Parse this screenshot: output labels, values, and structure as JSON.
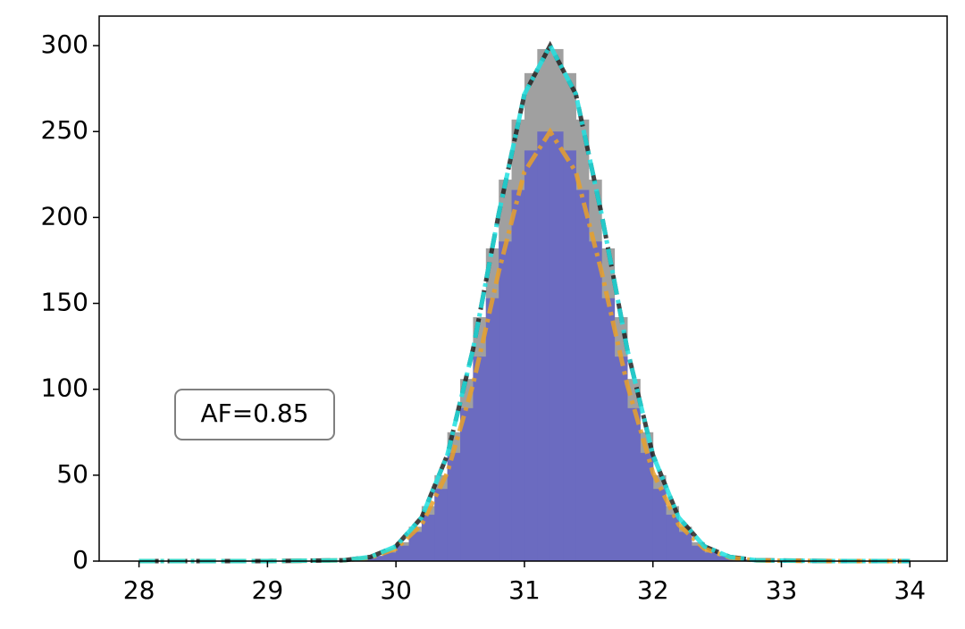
{
  "chart_data": {
    "type": "histogram",
    "annotation": "AF=0.85",
    "bins": [
      29.6,
      29.7,
      29.8,
      29.9,
      30.0,
      30.1,
      30.2,
      30.3,
      30.4,
      30.5,
      30.6,
      30.7,
      30.8,
      30.9,
      31.0,
      31.1,
      31.2,
      31.3,
      31.4,
      31.5,
      31.6,
      31.7,
      31.8,
      31.9,
      32.0,
      32.1,
      32.2,
      32.3,
      32.4,
      32.5,
      32.6,
      32.7,
      32.8
    ],
    "series": [
      {
        "color": "#a0a0a0",
        "values": [
          1,
          2,
          3,
          6,
          11,
          20,
          32,
          50,
          75,
          106,
          142,
          182,
          222,
          257,
          284,
          298,
          298,
          284,
          257,
          222,
          182,
          142,
          106,
          75,
          50,
          32,
          20,
          11,
          6,
          3,
          2,
          1
        ]
      },
      {
        "color": "#6b6bc0",
        "values": [
          1,
          1,
          3,
          5,
          9,
          17,
          27,
          42,
          63,
          89,
          119,
          153,
          186,
          216,
          239,
          250,
          250,
          239,
          216,
          186,
          153,
          119,
          89,
          63,
          42,
          27,
          17,
          9,
          5,
          3,
          2,
          1
        ]
      }
    ],
    "curves": {
      "x": [
        28,
        29,
        29.6,
        29.8,
        30.0,
        30.2,
        30.4,
        30.6,
        30.8,
        31.0,
        31.2,
        31.4,
        31.6,
        31.8,
        32.0,
        32.2,
        32.4,
        32.6,
        32.8,
        33.4,
        34
      ],
      "series": [
        {
          "color": "#222222",
          "dash": "22,10",
          "values": [
            0,
            0,
            0.5,
            2.4,
            8.6,
            25.4,
            61.8,
            123.3,
            202.1,
            271.8,
            300,
            271.8,
            202.1,
            123.3,
            61.8,
            25.4,
            8.6,
            2.4,
            0.5,
            0,
            0
          ]
        },
        {
          "color": "#e8a02a",
          "dash": "18,6,4,6",
          "values": [
            0,
            0,
            0.4,
            2,
            7.2,
            21.2,
            51.5,
            102.7,
            168.4,
            226.5,
            250,
            226.5,
            168.4,
            102.7,
            51.5,
            21.2,
            7.2,
            2,
            0.4,
            0,
            0
          ]
        },
        {
          "color": "#20e0e0",
          "dash": "18,6,4,6",
          "values": [
            0,
            0,
            0.5,
            2.4,
            8.6,
            25.4,
            61.8,
            123.3,
            202.1,
            271.8,
            300,
            271.8,
            202.1,
            123.3,
            61.8,
            25.4,
            8.6,
            2.4,
            0.5,
            0,
            0
          ]
        }
      ]
    },
    "xlim": [
      27.69,
      34.29
    ],
    "ylim": [
      0,
      317.2
    ],
    "xticks": [
      28,
      29,
      30,
      31,
      32,
      33,
      34
    ],
    "yticks": [
      0,
      50,
      100,
      150,
      200,
      250,
      300
    ]
  }
}
